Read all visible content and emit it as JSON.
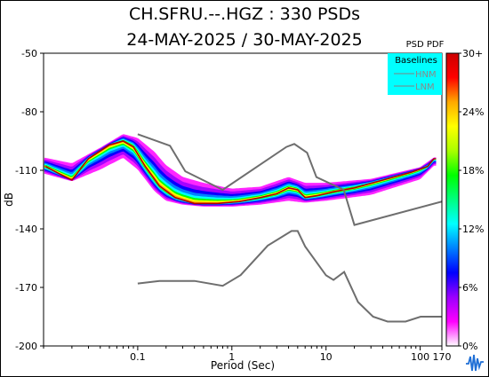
{
  "chart_data": {
    "type": "heatmap",
    "title": "CH.SFRU.--.HGZ : 330 PSDs",
    "subtitle": "24-MAY-2025 / 30-MAY-2025",
    "xlabel": "Period (Sec)",
    "ylabel": "dB",
    "x_scale": "log",
    "xlim": [
      0.01,
      170
    ],
    "ylim": [
      -200,
      -50
    ],
    "x_ticks": [
      "0.1",
      "1",
      "10",
      "100",
      "170"
    ],
    "y_ticks": [
      "-50",
      "-80",
      "-110",
      "-140",
      "-170",
      "-200"
    ],
    "y_tick_values": [
      -50,
      -80,
      -110,
      -140,
      -170,
      -200
    ],
    "colorbar": {
      "label": "PSD PDF",
      "ticks": [
        "30+",
        "24%",
        "18%",
        "12%",
        "6%",
        "0%"
      ],
      "tick_values": [
        30,
        24,
        18,
        12,
        6,
        0
      ],
      "colors": [
        "#ff00ff",
        "#9a00ff",
        "#0000ff",
        "#0080ff",
        "#00ffff",
        "#00ff80",
        "#00ff00",
        "#aaff00",
        "#ffff00",
        "#ffaa00",
        "#ff0000",
        "#aa0000"
      ]
    },
    "legend": {
      "title": "Baselines",
      "entries": [
        "HNM",
        "LNM"
      ],
      "placement": "top-right",
      "background": "#00ffff"
    },
    "pdf_mode": {
      "x": [
        0.0105,
        0.015,
        0.02,
        0.03,
        0.05,
        0.07,
        0.09,
        0.12,
        0.17,
        0.25,
        0.4,
        0.7,
        1.2,
        2,
        3,
        4,
        5,
        6,
        8,
        12,
        20,
        40,
        80,
        120,
        140
      ],
      "y": [
        -108,
        -112,
        -115,
        -104,
        -97,
        -95,
        -98,
        -108,
        -118,
        -124,
        -127,
        -127,
        -126,
        -124,
        -122,
        -119,
        -120,
        -124,
        -123,
        -121,
        -119,
        -115,
        -111,
        -108,
        -104
      ]
    },
    "pdf_spread": {
      "x": [
        0.01,
        0.02,
        0.04,
        0.07,
        0.1,
        0.15,
        0.2,
        0.3,
        0.5,
        1,
        2,
        4,
        6,
        10,
        30,
        100,
        140
      ],
      "upper": [
        -103,
        -106,
        -98,
        -91,
        -93,
        -100,
        -107,
        -113,
        -116,
        -119,
        -118,
        -113,
        -116,
        -116,
        -114,
        -108,
        -103
      ],
      "lower": [
        -112,
        -116,
        -110,
        -104,
        -110,
        -121,
        -126,
        -128,
        -129,
        -129,
        -128,
        -126,
        -127,
        -126,
        -123,
        -115,
        -108
      ]
    },
    "hnm": {
      "x": [
        0.1,
        0.22,
        0.32,
        0.8,
        3.8,
        4.6,
        6.3,
        7.9,
        15.4,
        20,
        354.8
      ],
      "y": [
        -91.5,
        -97.4,
        -110.5,
        -120,
        -98,
        -96.5,
        -101,
        -113.5,
        -120,
        -138,
        -126
      ]
    },
    "lnm": {
      "x": [
        0.1,
        0.17,
        0.4,
        0.8,
        1.24,
        2.4,
        4.3,
        5,
        6,
        10,
        12,
        15.6,
        21.9,
        31.6,
        45,
        70,
        101,
        154,
        328,
        600
      ],
      "y": [
        -168,
        -166.7,
        -166.7,
        -169.2,
        -163.7,
        -148.6,
        -141.1,
        -141.1,
        -149,
        -163.8,
        -166.2,
        -162.1,
        -177.5,
        -185,
        -187.5,
        -187.5,
        -185,
        -185,
        -185,
        -185
      ]
    }
  }
}
